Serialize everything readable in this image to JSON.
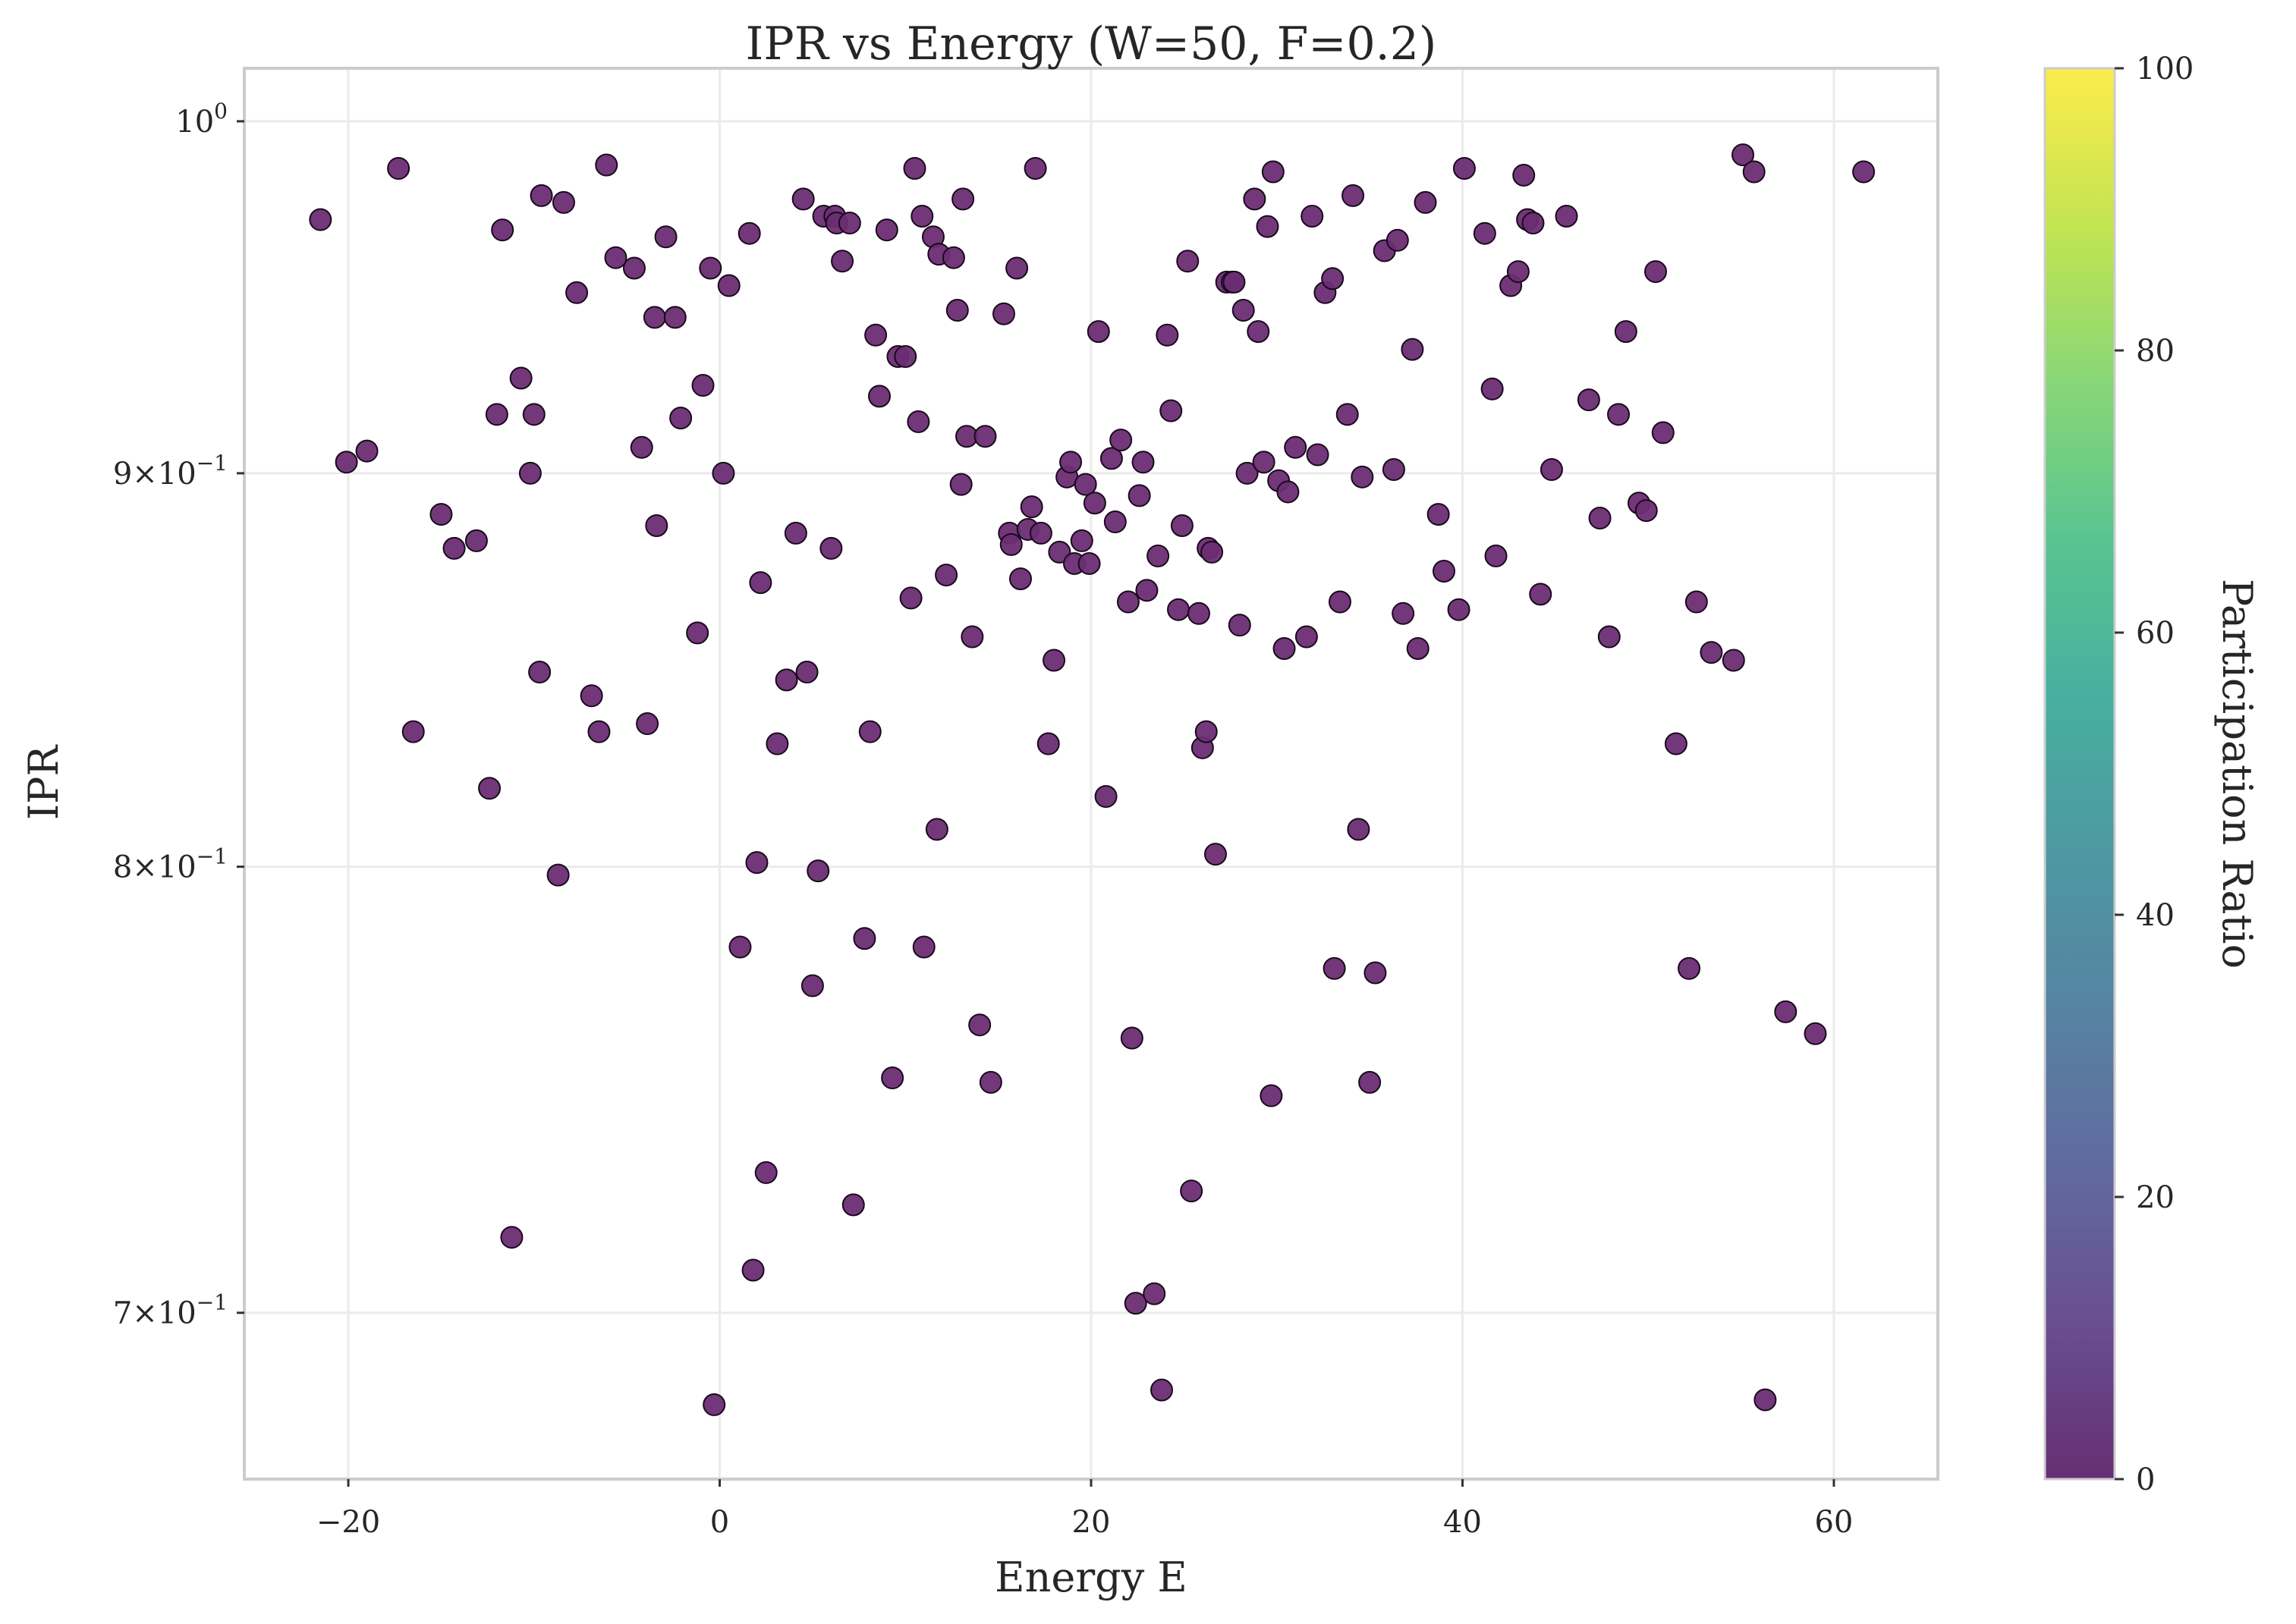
{
  "chart_data": {
    "type": "scatter",
    "title": "IPR vs Energy (W=50, F=0.2)",
    "xlabel": "Energy E",
    "ylabel": "IPR",
    "xlim": [
      -25.6,
      65.6
    ],
    "ylim": [
      0.666,
      1.016
    ],
    "yscale": "log",
    "grid": true,
    "legend": "none",
    "x_ticks": [
      -20,
      0,
      20,
      40,
      60
    ],
    "x_tick_labels": [
      "−20",
      "0",
      "20",
      "40",
      "60"
    ],
    "y_ticks": [
      1.0,
      0.9,
      0.8,
      0.7
    ],
    "y_tick_mantissa": [
      "",
      "9",
      "8",
      "7"
    ],
    "y_tick_exponent": [
      "0",
      "−1",
      "−1",
      "−1"
    ],
    "colorbar": {
      "label": "Participation Ratio",
      "range": [
        0,
        100
      ],
      "ticks": [
        0,
        20,
        40,
        60,
        80,
        100
      ],
      "tick_labels": [
        "0",
        "20",
        "40",
        "60",
        "80",
        "100"
      ],
      "colormap": "viridis",
      "stops": [
        "#440154",
        "#482878",
        "#3e4989",
        "#31688e",
        "#26828e",
        "#1f9e89",
        "#35b779",
        "#6ece58",
        "#b5de2b",
        "#fde725"
      ]
    },
    "point_color": "#6b2d72",
    "point_edge": "#1a0a1e",
    "points": [
      [
        -21.5,
        0.971
      ],
      [
        -20.1,
        0.903
      ],
      [
        -19.0,
        0.906
      ],
      [
        -17.3,
        0.986
      ],
      [
        -16.5,
        0.833
      ],
      [
        -15.0,
        0.889
      ],
      [
        -14.3,
        0.88
      ],
      [
        -13.1,
        0.882
      ],
      [
        -12.4,
        0.819
      ],
      [
        -12.0,
        0.916
      ],
      [
        -11.7,
        0.968
      ],
      [
        -11.2,
        0.716
      ],
      [
        -10.7,
        0.926
      ],
      [
        -10.2,
        0.9
      ],
      [
        -10.0,
        0.916
      ],
      [
        -9.7,
        0.848
      ],
      [
        -9.6,
        0.978
      ],
      [
        -8.7,
        0.798
      ],
      [
        -8.4,
        0.976
      ],
      [
        -7.7,
        0.95
      ],
      [
        -6.9,
        0.842
      ],
      [
        -6.5,
        0.833
      ],
      [
        -6.1,
        0.987
      ],
      [
        -5.6,
        0.96
      ],
      [
        -4.6,
        0.957
      ],
      [
        -4.2,
        0.907
      ],
      [
        -3.9,
        0.835
      ],
      [
        -3.5,
        0.943
      ],
      [
        -3.4,
        0.886
      ],
      [
        -2.9,
        0.966
      ],
      [
        -2.4,
        0.943
      ],
      [
        -2.1,
        0.915
      ],
      [
        -1.2,
        0.858
      ],
      [
        -0.9,
        0.924
      ],
      [
        -0.5,
        0.957
      ],
      [
        -0.3,
        0.681
      ],
      [
        0.2,
        0.9
      ],
      [
        0.5,
        0.952
      ],
      [
        1.1,
        0.781
      ],
      [
        1.6,
        0.967
      ],
      [
        1.8,
        0.709
      ],
      [
        2.0,
        0.801
      ],
      [
        2.2,
        0.871
      ],
      [
        2.5,
        0.73
      ],
      [
        3.1,
        0.83
      ],
      [
        3.6,
        0.846
      ],
      [
        4.1,
        0.884
      ],
      [
        4.5,
        0.977
      ],
      [
        4.7,
        0.848
      ],
      [
        5.0,
        0.772
      ],
      [
        5.3,
        0.799
      ],
      [
        5.6,
        0.972
      ],
      [
        6.0,
        0.88
      ],
      [
        6.2,
        0.972
      ],
      [
        6.3,
        0.97
      ],
      [
        6.6,
        0.959
      ],
      [
        7.0,
        0.97
      ],
      [
        7.2,
        0.723
      ],
      [
        7.8,
        0.783
      ],
      [
        8.1,
        0.833
      ],
      [
        8.4,
        0.938
      ],
      [
        8.6,
        0.921
      ],
      [
        9.0,
        0.968
      ],
      [
        9.3,
        0.751
      ],
      [
        9.6,
        0.932
      ],
      [
        10.0,
        0.932
      ],
      [
        10.3,
        0.867
      ],
      [
        10.5,
        0.986
      ],
      [
        10.7,
        0.914
      ],
      [
        10.9,
        0.972
      ],
      [
        11.0,
        0.781
      ],
      [
        11.5,
        0.966
      ],
      [
        11.7,
        0.809
      ],
      [
        11.8,
        0.961
      ],
      [
        12.2,
        0.873
      ],
      [
        12.6,
        0.96
      ],
      [
        12.8,
        0.945
      ],
      [
        13.0,
        0.897
      ],
      [
        13.1,
        0.977
      ],
      [
        13.3,
        0.91
      ],
      [
        13.6,
        0.857
      ],
      [
        14.0,
        0.763
      ],
      [
        14.3,
        0.91
      ],
      [
        14.6,
        0.75
      ],
      [
        15.3,
        0.944
      ],
      [
        15.6,
        0.884
      ],
      [
        15.7,
        0.881
      ],
      [
        16.0,
        0.957
      ],
      [
        16.2,
        0.872
      ],
      [
        16.6,
        0.885
      ],
      [
        16.8,
        0.891
      ],
      [
        17.0,
        0.986
      ],
      [
        17.3,
        0.884
      ],
      [
        17.7,
        0.83
      ],
      [
        18.0,
        0.851
      ],
      [
        18.3,
        0.879
      ],
      [
        18.7,
        0.899
      ],
      [
        18.9,
        0.903
      ],
      [
        19.1,
        0.876
      ],
      [
        19.5,
        0.882
      ],
      [
        19.7,
        0.897
      ],
      [
        19.9,
        0.876
      ],
      [
        20.2,
        0.892
      ],
      [
        20.4,
        0.939
      ],
      [
        20.8,
        0.817
      ],
      [
        21.1,
        0.904
      ],
      [
        21.3,
        0.887
      ],
      [
        21.6,
        0.909
      ],
      [
        22.0,
        0.866
      ],
      [
        22.2,
        0.76
      ],
      [
        22.4,
        0.702
      ],
      [
        22.6,
        0.894
      ],
      [
        22.8,
        0.903
      ],
      [
        23.0,
        0.869
      ],
      [
        23.4,
        0.704
      ],
      [
        23.6,
        0.878
      ],
      [
        23.8,
        0.684
      ],
      [
        24.1,
        0.938
      ],
      [
        24.3,
        0.917
      ],
      [
        24.7,
        0.864
      ],
      [
        24.9,
        0.886
      ],
      [
        25.2,
        0.959
      ],
      [
        25.4,
        0.726
      ],
      [
        25.8,
        0.863
      ],
      [
        26.0,
        0.829
      ],
      [
        26.2,
        0.833
      ],
      [
        26.3,
        0.88
      ],
      [
        26.5,
        0.879
      ],
      [
        26.7,
        0.803
      ],
      [
        27.3,
        0.953
      ],
      [
        27.6,
        0.953
      ],
      [
        27.7,
        0.953
      ],
      [
        28.0,
        0.86
      ],
      [
        28.2,
        0.945
      ],
      [
        28.4,
        0.9
      ],
      [
        28.8,
        0.977
      ],
      [
        29.0,
        0.939
      ],
      [
        29.3,
        0.903
      ],
      [
        29.5,
        0.969
      ],
      [
        29.7,
        0.747
      ],
      [
        29.8,
        0.985
      ],
      [
        30.1,
        0.898
      ],
      [
        30.4,
        0.854
      ],
      [
        30.6,
        0.895
      ],
      [
        31.0,
        0.907
      ],
      [
        31.6,
        0.857
      ],
      [
        31.9,
        0.972
      ],
      [
        32.2,
        0.905
      ],
      [
        32.6,
        0.95
      ],
      [
        33.0,
        0.954
      ],
      [
        33.1,
        0.776
      ],
      [
        33.4,
        0.866
      ],
      [
        33.8,
        0.916
      ],
      [
        34.1,
        0.978
      ],
      [
        34.4,
        0.809
      ],
      [
        34.6,
        0.899
      ],
      [
        35.0,
        0.75
      ],
      [
        35.3,
        0.775
      ],
      [
        35.8,
        0.962
      ],
      [
        36.3,
        0.901
      ],
      [
        36.5,
        0.965
      ],
      [
        36.8,
        0.863
      ],
      [
        37.3,
        0.934
      ],
      [
        37.6,
        0.854
      ],
      [
        38.0,
        0.976
      ],
      [
        38.7,
        0.889
      ],
      [
        39.0,
        0.874
      ],
      [
        39.8,
        0.864
      ],
      [
        40.1,
        0.986
      ],
      [
        41.2,
        0.967
      ],
      [
        41.6,
        0.923
      ],
      [
        41.8,
        0.878
      ],
      [
        42.6,
        0.952
      ],
      [
        43.0,
        0.956
      ],
      [
        43.3,
        0.984
      ],
      [
        43.5,
        0.971
      ],
      [
        43.8,
        0.97
      ],
      [
        44.2,
        0.868
      ],
      [
        44.8,
        0.901
      ],
      [
        45.6,
        0.972
      ],
      [
        46.8,
        0.92
      ],
      [
        47.4,
        0.888
      ],
      [
        47.9,
        0.857
      ],
      [
        48.4,
        0.916
      ],
      [
        48.8,
        0.939
      ],
      [
        49.5,
        0.892
      ],
      [
        49.9,
        0.89
      ],
      [
        50.4,
        0.956
      ],
      [
        50.8,
        0.911
      ],
      [
        51.5,
        0.83
      ],
      [
        52.2,
        0.776
      ],
      [
        52.6,
        0.866
      ],
      [
        53.4,
        0.853
      ],
      [
        54.6,
        0.851
      ],
      [
        55.1,
        0.99
      ],
      [
        55.7,
        0.985
      ],
      [
        56.3,
        0.682
      ],
      [
        57.4,
        0.766
      ],
      [
        59.0,
        0.761
      ],
      [
        61.6,
        0.985
      ]
    ]
  }
}
